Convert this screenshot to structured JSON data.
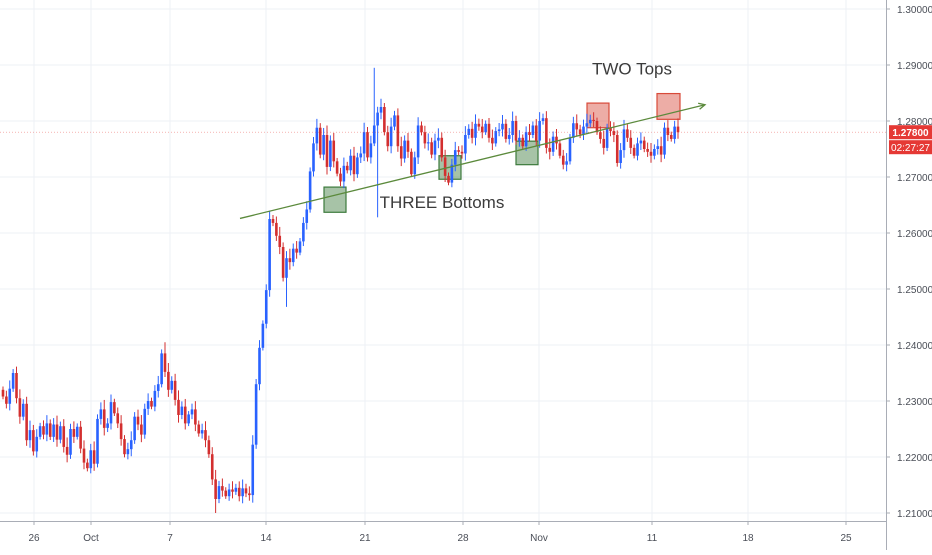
{
  "chart_data": {
    "type": "candlestick",
    "title": "",
    "xlabel": "",
    "ylabel": "",
    "ylim": [
      1.208,
      1.3026
    ],
    "x_ticks": [
      {
        "label": "26",
        "x": 34
      },
      {
        "label": "Oct",
        "x": 91
      },
      {
        "label": "7",
        "x": 170
      },
      {
        "label": "14",
        "x": 266
      },
      {
        "label": "21",
        "x": 365
      },
      {
        "label": "28",
        "x": 463
      },
      {
        "label": "Nov",
        "x": 539
      },
      {
        "label": "11",
        "x": 652
      },
      {
        "label": "18",
        "x": 748
      },
      {
        "label": "25",
        "x": 846
      }
    ],
    "y_ticks": [
      "1.30000",
      "1.29000",
      "1.28000",
      "1.27000",
      "1.26000",
      "1.25000",
      "1.24000",
      "1.23000",
      "1.22000",
      "1.21000"
    ],
    "grid": true,
    "colors": {
      "up": "#2962ff",
      "down": "#d32f2f",
      "trendline": "#5b8a3c",
      "price_label": "#e53935"
    },
    "current_price": {
      "value": 1.278,
      "label": "1.27800",
      "countdown": "02:27:27"
    },
    "annotations": [
      {
        "text": "TWO Tops",
        "x": 632,
        "y": 1.2883
      },
      {
        "text": "THREE Bottoms",
        "x": 442,
        "y": 1.2645
      }
    ],
    "zones": [
      {
        "kind": "bottom",
        "x0": 324,
        "x1": 346,
        "y0": 1.2637,
        "y1": 1.2682,
        "color": "#3c7a3c"
      },
      {
        "kind": "bottom",
        "x0": 439,
        "x1": 461,
        "y0": 1.2696,
        "y1": 1.2738,
        "color": "#3c7a3c"
      },
      {
        "kind": "bottom",
        "x0": 516,
        "x1": 538,
        "y0": 1.2722,
        "y1": 1.2764,
        "color": "#3c7a3c"
      },
      {
        "kind": "top",
        "x0": 587,
        "x1": 609,
        "y0": 1.2788,
        "y1": 1.2832,
        "color": "#d84a3a"
      },
      {
        "kind": "top",
        "x0": 657,
        "x1": 680,
        "y0": 1.2803,
        "y1": 1.2849,
        "color": "#d84a3a"
      }
    ],
    "trendline": {
      "x0": 240,
      "y0": 1.2626,
      "x1": 705,
      "y1": 1.2829
    },
    "candles_x_start": 3,
    "candles_x_end": 678,
    "candle_closes": [
      1.2308,
      1.2295,
      1.2322,
      1.235,
      1.2305,
      1.2272,
      1.2295,
      1.223,
      1.2248,
      1.221,
      1.2236,
      1.2255,
      1.224,
      1.226,
      1.2236,
      1.2258,
      1.2231,
      1.2255,
      1.2218,
      1.2204,
      1.225,
      1.2236,
      1.2254,
      1.2215,
      1.219,
      1.218,
      1.2212,
      1.2188,
      1.2268,
      1.2285,
      1.2252,
      1.226,
      1.2298,
      1.2278,
      1.226,
      1.2232,
      1.2205,
      1.2214,
      1.223,
      1.2272,
      1.2258,
      1.224,
      1.2286,
      1.23,
      1.229,
      1.2318,
      1.233,
      1.2385,
      1.2352,
      1.232,
      1.2336,
      1.2302,
      1.2275,
      1.229,
      1.226,
      1.2276,
      1.2285,
      1.2258,
      1.2242,
      1.2248,
      1.223,
      1.2205,
      1.216,
      1.2125,
      1.2148,
      1.214,
      1.213,
      1.2142,
      1.2138,
      1.2145,
      1.213,
      1.2144,
      1.2135,
      1.2132,
      1.2222,
      1.233,
      1.2395,
      1.2438,
      1.2498,
      1.2625,
      1.2618,
      1.2595,
      1.2575,
      1.252,
      1.2555,
      1.2548,
      1.2572,
      1.2565,
      1.2585,
      1.2618,
      1.2642,
      1.271,
      1.276,
      1.2788,
      1.274,
      1.2775,
      1.2718,
      1.2765,
      1.2728,
      1.2706,
      1.2692,
      1.272,
      1.2712,
      1.2738,
      1.2705,
      1.2735,
      1.2742,
      1.278,
      1.2735,
      1.276,
      1.2792,
      1.2815,
      1.2825,
      1.278,
      1.2755,
      1.279,
      1.281,
      1.2755,
      1.2733,
      1.2765,
      1.2745,
      1.2705,
      1.2735,
      1.2792,
      1.278,
      1.276,
      1.2762,
      1.274,
      1.2765,
      1.277,
      1.2735,
      1.2702,
      1.269,
      1.2722,
      1.2748,
      1.2745,
      1.2742,
      1.2775,
      1.2786,
      1.277,
      1.2795,
      1.279,
      1.278,
      1.2795,
      1.277,
      1.276,
      1.2782,
      1.2785,
      1.2795,
      1.2768,
      1.2775,
      1.28,
      1.2765,
      1.277,
      1.2755,
      1.278,
      1.2775,
      1.2792,
      1.2765,
      1.28,
      1.2805,
      1.2752,
      1.2745,
      1.2772,
      1.276,
      1.2738,
      1.2722,
      1.2728,
      1.277,
      1.2796,
      1.2785,
      1.2776,
      1.279,
      1.2796,
      1.2802,
      1.28,
      1.278,
      1.2768,
      1.2752,
      1.2788,
      1.2782,
      1.2775,
      1.2725,
      1.2748,
      1.2785,
      1.277,
      1.2752,
      1.2738,
      1.276,
      1.2765,
      1.275,
      1.2745,
      1.2738,
      1.275,
      1.2755,
      1.274,
      1.2788,
      1.2775,
      1.2768,
      1.279,
      1.278
    ]
  }
}
